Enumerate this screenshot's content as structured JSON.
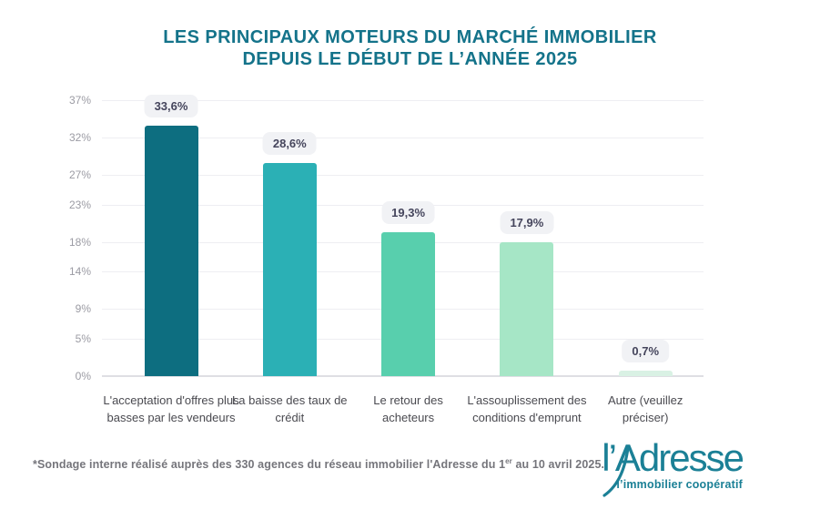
{
  "title": {
    "line1": "LES PRINCIPAUX MOTEURS DU MARCHÉ IMMOBILIER",
    "line2": "DEPUIS LE DÉBUT DE L’ANNÉE 2025",
    "color": "#14738a"
  },
  "chart_data": {
    "type": "bar",
    "title": "LES PRINCIPAUX MOTEURS DU MARCHÉ IMMOBILIER DEPUIS LE DÉBUT DE L’ANNÉE 2025",
    "categories": [
      "L'acceptation d'offres plus basses par les vendeurs",
      "La baisse des taux de crédit",
      "Le retour des acheteurs",
      "L'assouplissement des conditions d'emprunt",
      "Autre (veuillez préciser)"
    ],
    "values": [
      33.6,
      28.6,
      19.3,
      17.9,
      0.7
    ],
    "value_labels": [
      "33,6%",
      "28,6%",
      "19,3%",
      "17,9%",
      "0,7%"
    ],
    "bar_colors": [
      "#0d6e80",
      "#2bb0b5",
      "#58cfad",
      "#a6e6c6",
      "#d9f1e4"
    ],
    "y_ticks": [
      37,
      32,
      27,
      23,
      18,
      14,
      9,
      5,
      0
    ],
    "y_tick_labels": [
      "37%",
      "32%",
      "27%",
      "23%",
      "18%",
      "14%",
      "9%",
      "5%",
      "0%"
    ],
    "ylim": [
      0,
      37
    ],
    "xlabel": "",
    "ylabel": "",
    "grid": true,
    "legend": "none",
    "badge_bg": "#f1f2f5",
    "badge_text_color": "#45455c"
  },
  "footnote": {
    "prefix": "*Sondage interne réalisé auprès des 330 agences du réseau immobilier l'Adresse du 1",
    "sup": "er",
    "suffix": " au 10 avril 2025."
  },
  "logo": {
    "name": "l’Adresse",
    "tagline": "l’immobilier coopératif",
    "color": "#1b8096"
  }
}
